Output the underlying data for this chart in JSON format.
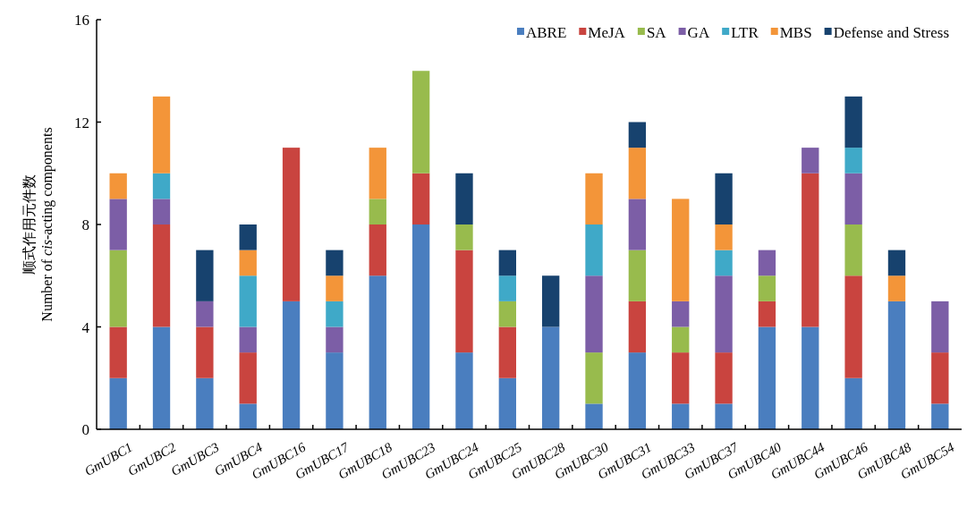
{
  "chart_data": {
    "type": "bar",
    "stacked": true,
    "ylabel": "顺式作用元件数\nNumber of *cis*-acting components",
    "categories": [
      "GmUBC1",
      "GmUBC2",
      "GmUBC3",
      "GmUBC4",
      "GmUBC16",
      "GmUBC17",
      "GmUBC18",
      "GmUBC23",
      "GmUBC24",
      "GmUBC25",
      "GmUBC28",
      "GmUBC30",
      "GmUBC31",
      "GmUBC33",
      "GmUBC37",
      "GmUBC40",
      "GmUBC44",
      "GmUBC46",
      "GmUBC48",
      "GmUBC54"
    ],
    "series": [
      {
        "name": "ABRE",
        "color": "#4a7ebf",
        "values": [
          2,
          4,
          2,
          1,
          5,
          3,
          6,
          8,
          3,
          2,
          4,
          1,
          3,
          1,
          1,
          4,
          4,
          2,
          5,
          1
        ]
      },
      {
        "name": "MeJA",
        "color": "#c9443f",
        "values": [
          2,
          4,
          2,
          2,
          6,
          null,
          2,
          2,
          4,
          2,
          null,
          null,
          2,
          2,
          2,
          1,
          6,
          4,
          null,
          2
        ]
      },
      {
        "name": "SA",
        "color": "#98bb4d",
        "values": [
          3,
          null,
          null,
          null,
          null,
          null,
          1,
          4,
          1,
          1,
          null,
          2,
          2,
          1,
          null,
          1,
          null,
          2,
          null,
          null
        ]
      },
      {
        "name": "GA",
        "color": "#7c5ea6",
        "values": [
          2,
          1,
          1,
          1,
          null,
          1,
          null,
          null,
          null,
          null,
          null,
          3,
          2,
          1,
          3,
          1,
          1,
          2,
          null,
          2
        ]
      },
      {
        "name": "LTR",
        "color": "#3fa9c8",
        "values": [
          null,
          1,
          null,
          2,
          null,
          1,
          null,
          null,
          null,
          1,
          null,
          2,
          null,
          null,
          1,
          null,
          null,
          1,
          null,
          null
        ]
      },
      {
        "name": "MBS",
        "color": "#f39539",
        "values": [
          1,
          3,
          null,
          1,
          null,
          1,
          2,
          null,
          null,
          null,
          null,
          2,
          2,
          4,
          1,
          null,
          null,
          null,
          1,
          null
        ]
      },
      {
        "name": "Defense and Stress",
        "color": "#17426e",
        "values": [
          null,
          null,
          2,
          1,
          null,
          1,
          null,
          null,
          2,
          1,
          2,
          null,
          1,
          null,
          2,
          null,
          null,
          2,
          1,
          null
        ]
      }
    ],
    "ylim": [
      0,
      16
    ],
    "yticks": [
      0,
      4,
      8,
      12,
      16
    ],
    "legend": "top right",
    "grid": false
  }
}
